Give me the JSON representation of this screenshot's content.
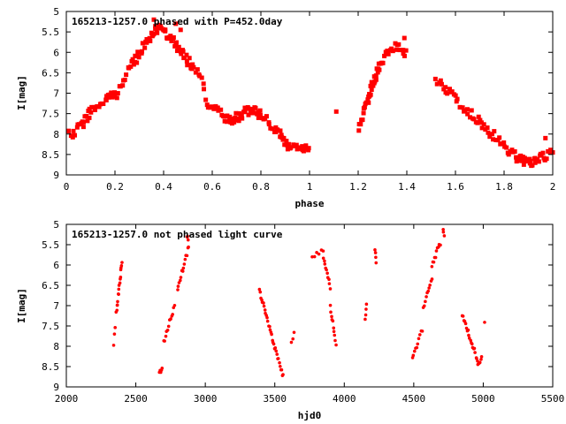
{
  "colors": {
    "points": "#ff0000",
    "frame": "#000000",
    "background": "#ffffff"
  },
  "chart_data": [
    {
      "type": "scatter",
      "title": "165213-1257.0 phased with P=452.0day",
      "xlabel": "phase",
      "ylabel": "I[mag]",
      "xlim": [
        0,
        2
      ],
      "ylim": [
        5,
        9
      ],
      "y_inverted": true,
      "grid": false,
      "xticks": [
        0,
        0.2,
        0.4,
        0.6,
        0.8,
        1,
        1.2,
        1.4,
        1.6,
        1.8,
        2
      ],
      "xtick_labels": [
        "0",
        "0.2",
        "0.4",
        "0.6",
        "0.8",
        "1",
        "1.2",
        "1.4",
        "1.6",
        "1.8",
        "2"
      ],
      "yticks": [
        5,
        5.5,
        6,
        6.5,
        7,
        7.5,
        8,
        8.5,
        9
      ],
      "ytick_labels": [
        "5",
        "5.5",
        "6",
        "6.5",
        "7",
        "7.5",
        "8",
        "8.5",
        "9"
      ],
      "curve": [
        [
          0.0,
          8.05
        ],
        [
          0.03,
          8.0
        ],
        [
          0.06,
          7.8
        ],
        [
          0.08,
          7.6
        ],
        [
          0.1,
          7.45
        ],
        [
          0.13,
          7.3
        ],
        [
          0.16,
          7.2
        ],
        [
          0.18,
          7.1
        ],
        [
          0.2,
          7.05
        ],
        [
          0.23,
          6.8
        ],
        [
          0.26,
          6.4
        ],
        [
          0.28,
          6.2
        ],
        [
          0.3,
          6.05
        ],
        [
          0.32,
          5.85
        ],
        [
          0.34,
          5.65
        ],
        [
          0.36,
          5.5
        ],
        [
          0.38,
          5.4
        ],
        [
          0.4,
          5.5
        ],
        [
          0.42,
          5.6
        ],
        [
          0.44,
          5.75
        ],
        [
          0.46,
          5.9
        ],
        [
          0.48,
          6.05
        ],
        [
          0.5,
          6.2
        ],
        [
          0.52,
          6.35
        ],
        [
          0.55,
          6.6
        ],
        [
          0.58,
          7.2
        ],
        [
          0.61,
          7.4
        ],
        [
          0.64,
          7.55
        ],
        [
          0.66,
          7.65
        ],
        [
          0.68,
          7.7
        ],
        [
          0.7,
          7.6
        ],
        [
          0.72,
          7.5
        ],
        [
          0.74,
          7.45
        ],
        [
          0.76,
          7.4
        ],
        [
          0.78,
          7.45
        ],
        [
          0.8,
          7.55
        ],
        [
          0.83,
          7.7
        ],
        [
          0.86,
          7.9
        ],
        [
          0.88,
          8.0
        ],
        [
          0.9,
          8.2
        ],
        [
          0.92,
          8.3
        ],
        [
          0.95,
          8.4
        ],
        [
          0.98,
          8.35
        ],
        [
          1.0,
          8.3
        ],
        [
          1.2,
          7.95
        ],
        [
          1.22,
          7.5
        ],
        [
          1.24,
          7.2
        ],
        [
          1.25,
          7.0
        ],
        [
          1.26,
          6.8
        ],
        [
          1.27,
          6.6
        ],
        [
          1.28,
          6.4
        ],
        [
          1.3,
          6.2
        ],
        [
          1.32,
          6.0
        ],
        [
          1.35,
          5.85
        ],
        [
          1.38,
          5.9
        ],
        [
          1.4,
          6.05
        ],
        [
          1.52,
          6.65
        ],
        [
          1.55,
          6.8
        ],
        [
          1.58,
          7.0
        ],
        [
          1.61,
          7.2
        ],
        [
          1.64,
          7.4
        ],
        [
          1.67,
          7.55
        ],
        [
          1.7,
          7.7
        ],
        [
          1.73,
          7.9
        ],
        [
          1.76,
          8.05
        ],
        [
          1.79,
          8.25
        ],
        [
          1.82,
          8.4
        ],
        [
          1.85,
          8.55
        ],
        [
          1.87,
          8.65
        ],
        [
          1.89,
          8.7
        ],
        [
          1.91,
          8.7
        ],
        [
          1.93,
          8.65
        ],
        [
          1.95,
          8.6
        ],
        [
          1.97,
          8.55
        ],
        [
          2.0,
          8.45
        ]
      ],
      "scatter_amplitude": 0.12,
      "extra_points": [
        [
          0.36,
          5.2
        ],
        [
          0.45,
          5.3
        ],
        [
          0.47,
          5.45
        ],
        [
          1.11,
          7.45
        ],
        [
          1.39,
          5.65
        ],
        [
          1.97,
          8.1
        ],
        [
          0.92,
          8.35
        ],
        [
          0.97,
          8.3
        ]
      ]
    },
    {
      "type": "scatter",
      "title": "165213-1257.0 not phased light curve",
      "xlabel": "hjd0",
      "ylabel": "I[mag]",
      "xlim": [
        2000,
        5500
      ],
      "ylim": [
        5,
        9
      ],
      "y_inverted": true,
      "grid": false,
      "xticks": [
        2000,
        2500,
        3000,
        3500,
        4000,
        4500,
        5000,
        5500
      ],
      "xtick_labels": [
        "2000",
        "2500",
        "3000",
        "3500",
        "4000",
        "4500",
        "5000",
        "5500"
      ],
      "yticks": [
        5,
        5.5,
        6,
        6.5,
        7,
        7.5,
        8,
        8.5,
        9
      ],
      "ytick_labels": [
        "5",
        "5.5",
        "6",
        "6.5",
        "7",
        "7.5",
        "8",
        "8.5",
        "9"
      ],
      "segments": [
        {
          "x": [
            2340,
            2350
          ],
          "y": [
            7.95,
            7.55
          ],
          "n": 3
        },
        {
          "x": [
            2360,
            2400
          ],
          "y": [
            7.2,
            5.9
          ],
          "n": 16
        },
        {
          "x": [
            2670,
            2690
          ],
          "y": [
            8.7,
            8.5
          ],
          "n": 5
        },
        {
          "x": [
            2700,
            2780
          ],
          "y": [
            7.9,
            7.0
          ],
          "n": 12
        },
        {
          "x": [
            2800,
            2880
          ],
          "y": [
            6.6,
            5.55
          ],
          "n": 14
        },
        {
          "x": [
            2870,
            2875
          ],
          "y": [
            5.25,
            5.4
          ],
          "n": 3
        },
        {
          "x": [
            3390,
            3560
          ],
          "y": [
            6.65,
            8.75
          ],
          "n": 32
        },
        {
          "x": [
            3620,
            3640
          ],
          "y": [
            7.95,
            7.6
          ],
          "n": 3
        },
        {
          "x": [
            3770,
            3850
          ],
          "y": [
            5.85,
            5.6
          ],
          "n": 6
        },
        {
          "x": [
            3850,
            3900
          ],
          "y": [
            5.8,
            6.55
          ],
          "n": 10
        },
        {
          "x": [
            3900,
            3940
          ],
          "y": [
            7.0,
            7.95
          ],
          "n": 10
        },
        {
          "x": [
            4150,
            4160
          ],
          "y": [
            7.35,
            7.0
          ],
          "n": 4
        },
        {
          "x": [
            4220,
            4230
          ],
          "y": [
            5.6,
            6.0
          ],
          "n": 4
        },
        {
          "x": [
            4490,
            4560
          ],
          "y": [
            8.3,
            7.6
          ],
          "n": 10
        },
        {
          "x": [
            4570,
            4630
          ],
          "y": [
            7.1,
            6.3
          ],
          "n": 10
        },
        {
          "x": [
            4630,
            4690
          ],
          "y": [
            6.0,
            5.45
          ],
          "n": 10
        },
        {
          "x": [
            4710,
            4720
          ],
          "y": [
            5.15,
            5.3
          ],
          "n": 3
        },
        {
          "x": [
            4850,
            4960
          ],
          "y": [
            7.2,
            8.35
          ],
          "n": 20
        },
        {
          "x": [
            4960,
            4990
          ],
          "y": [
            8.4,
            8.3
          ],
          "n": 5
        },
        {
          "x": [
            5010,
            5020
          ],
          "y": [
            7.45,
            7.45
          ],
          "n": 1
        }
      ],
      "scatter_amplitude": 0.06
    }
  ]
}
